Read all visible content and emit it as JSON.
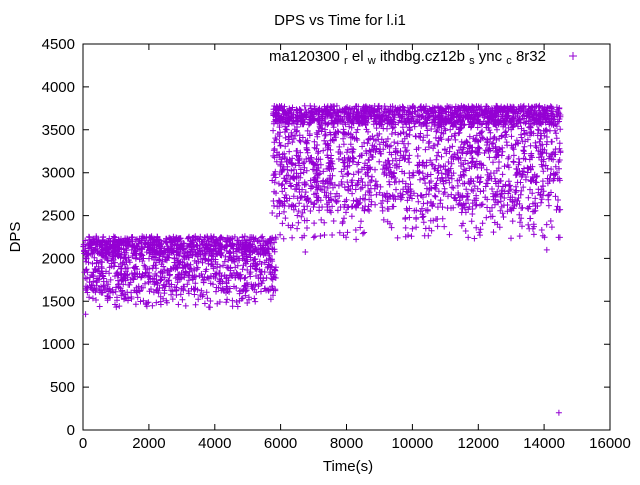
{
  "chart_data": {
    "type": "scatter",
    "title": "DPS vs Time for l.i1",
    "xlabel": "Time(s)",
    "ylabel": "DPS",
    "xlim": [
      0,
      16000
    ],
    "ylim": [
      0,
      4500
    ],
    "xticks": [
      0,
      2000,
      4000,
      6000,
      8000,
      10000,
      12000,
      14000,
      16000
    ],
    "yticks": [
      0,
      500,
      1000,
      1500,
      2000,
      2500,
      3000,
      3500,
      4000,
      4500
    ],
    "grid": false,
    "legend_position": "top-right-inside",
    "marker": "+",
    "marker_color": "#9400D3",
    "seed": 1337,
    "series": [
      {
        "name": "ma120300_rel_withdbg.cz12b_sync_c8r32",
        "clusters": [
          {
            "t_min": 10,
            "t_max": 5860,
            "count": 1400,
            "layers": [
              {
                "p": 0.5,
                "dps_min": 2040,
                "dps_max": 2260
              },
              {
                "p": 0.3,
                "dps_min": 1750,
                "dps_max": 2040
              },
              {
                "p": 0.15,
                "dps_min": 1600,
                "dps_max": 1750
              },
              {
                "p": 0.05,
                "dps_min": 1430,
                "dps_max": 1600
              }
            ]
          },
          {
            "t_min": 5740,
            "t_max": 14500,
            "count": 2600,
            "layers": [
              {
                "p": 0.42,
                "dps_min": 3560,
                "dps_max": 3780
              },
              {
                "p": 0.38,
                "dps_min": 2850,
                "dps_max": 3560
              },
              {
                "p": 0.15,
                "dps_min": 2550,
                "dps_max": 2850
              },
              {
                "p": 0.05,
                "dps_min": 2220,
                "dps_max": 2550
              }
            ]
          }
        ],
        "outliers": [
          [
            80,
            1350
          ],
          [
            6750,
            2075
          ],
          [
            9550,
            2240
          ],
          [
            11620,
            2320
          ],
          [
            13260,
            2260
          ],
          [
            14080,
            2100
          ],
          [
            14450,
            200
          ]
        ]
      }
    ]
  },
  "legend": {
    "marker": "+",
    "raw_label": "ma120300_rel_withdbg.cz12b_sync_c8r32",
    "parts": [
      "ma120300",
      "r",
      "el",
      "w",
      "ithdbg.cz12b",
      "s",
      "ync",
      "c",
      "8r32"
    ]
  }
}
